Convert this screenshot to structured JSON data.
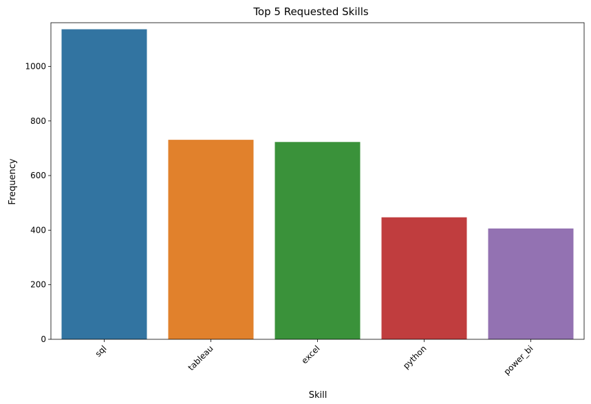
{
  "chart_data": {
    "type": "bar",
    "title": "Top 5 Requested Skills",
    "xlabel": "Skill",
    "ylabel": "Frequency",
    "categories": [
      "sql",
      "tableau",
      "excel",
      "python",
      "power_bi"
    ],
    "values": [
      1136,
      731,
      723,
      447,
      406
    ],
    "colors": [
      "#3274a1",
      "#e1812c",
      "#3a923a",
      "#c03d3e",
      "#9372b2"
    ],
    "ylim": [
      0,
      1160
    ],
    "yticks": [
      0,
      200,
      400,
      600,
      800,
      1000
    ],
    "ytick_labels": [
      "0",
      "200",
      "400",
      "600",
      "800",
      "1000"
    ],
    "grid": false,
    "xtick_rotation": -45
  }
}
